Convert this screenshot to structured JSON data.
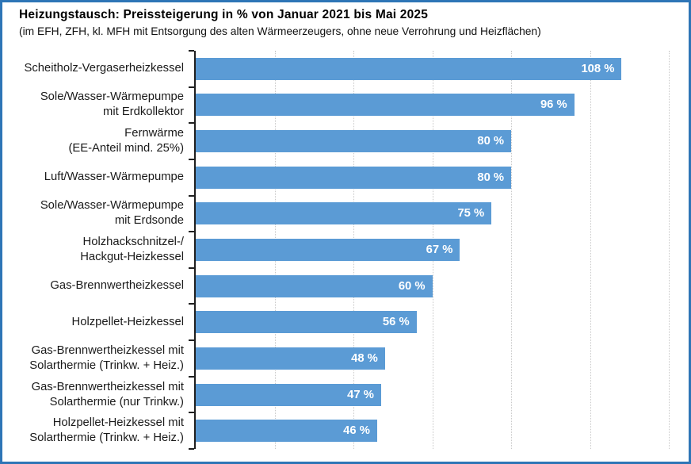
{
  "title": "Heizungstausch: Preissteigerung in % von Januar 2021 bis Mai 2025",
  "subtitle": "(im EFH, ZFH, kl. MFH mit Entsorgung des alten Wärmeerzeugers, ohne neue Verrohrung und Heizflächen)",
  "chart_data": {
    "type": "bar",
    "orientation": "horizontal",
    "title": "Heizungstausch: Preissteigerung in % von Januar 2021 bis Mai 2025",
    "subtitle": "(im EFH, ZFH, kl. MFH mit Entsorgung des alten Wärmeerzeugers, ohne neue Verrohrung und Heizflächen)",
    "categories": [
      "Scheitholz-Vergaserheizkessel",
      "Sole/Wasser-Wärmepumpe mit Erdkollektor",
      "Fernwärme (EE-Anteil mind. 25%)",
      "Luft/Wasser-Wärmepumpe",
      "Sole/Wasser-Wärmepumpe mit Erdsonde",
      "Holzhackschnitzel-/ Hackgut-Heizkessel",
      "Gas-Brennwertheizkessel",
      "Holzpellet-Heizkessel",
      "Gas-Brennwertheizkessel mit Solarthermie (Trinkw. + Heiz.)",
      "Gas-Brennwertheizkessel mit Solarthermie (nur Trinkw.)",
      "Holzpellet-Heizkessel mit Solarthermie (Trinkw. + Heiz.)"
    ],
    "category_lines": [
      [
        "Scheitholz-Vergaserheizkessel"
      ],
      [
        "Sole/Wasser-Wärmepumpe",
        "mit Erdkollektor"
      ],
      [
        "Fernwärme",
        "(EE-Anteil mind. 25%)"
      ],
      [
        "Luft/Wasser-Wärmepumpe"
      ],
      [
        "Sole/Wasser-Wärmepumpe",
        "mit Erdsonde"
      ],
      [
        "Holzhackschnitzel-/",
        "Hackgut-Heizkessel"
      ],
      [
        "Gas-Brennwertheizkessel"
      ],
      [
        "Holzpellet-Heizkessel"
      ],
      [
        "Gas-Brennwertheizkessel mit",
        "Solarthermie (Trinkw. + Heiz.)"
      ],
      [
        "Gas-Brennwertheizkessel mit",
        "Solarthermie (nur Trinkw.)"
      ],
      [
        "Holzpellet-Heizkessel mit",
        "Solarthermie (Trinkw. + Heiz.)"
      ]
    ],
    "values": [
      108,
      96,
      80,
      80,
      75,
      67,
      60,
      56,
      48,
      47,
      46
    ],
    "value_labels": [
      "108 %",
      "96 %",
      "80 %",
      "80 %",
      "75 %",
      "67 %",
      "60 %",
      "56 %",
      "48 %",
      "47 %",
      "46 %"
    ],
    "xlabel": "",
    "ylabel": "",
    "xlim": [
      0,
      125
    ],
    "gridlines": [
      20,
      40,
      60,
      80,
      100,
      120
    ],
    "grid_on": true,
    "legend_position": "none",
    "bar_color": "#5B9BD5",
    "value_label_color": "#FFFFFF",
    "frame_border_color": "#2E75B6",
    "axis_color": "#1F1F1F",
    "gridline_color": "#C9C9C9"
  }
}
